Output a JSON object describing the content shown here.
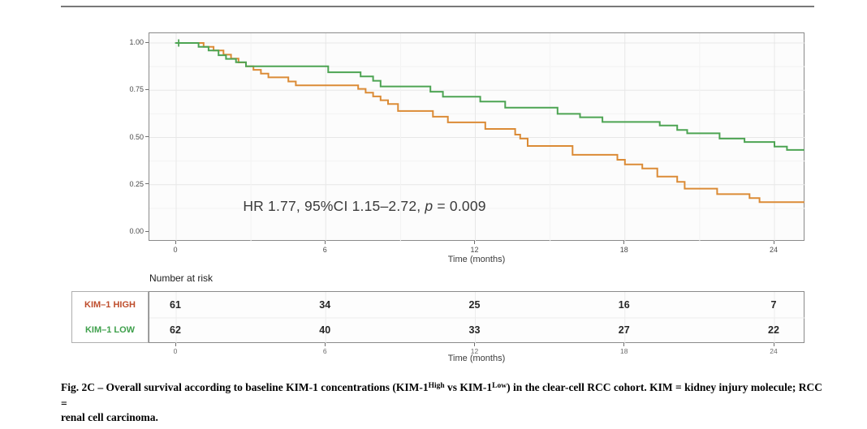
{
  "figure_label": "Fig. 2C",
  "annotation": {
    "prefix": "HR 1.77, 95%CI 1.15–2.72, ",
    "p_var": "p",
    "suffix": " = 0.009"
  },
  "risk_section": {
    "heading": "Number at risk",
    "x_title": "Time (months)"
  },
  "caption": {
    "line1_parts": [
      {
        "text": "Fig. 2C – Overall survival according to baseline KIM-1 concentrations (KIM-1",
        "sup": false
      },
      {
        "text": "High",
        "sup": true
      },
      {
        "text": " vs KIM-1",
        "sup": false
      },
      {
        "text": "Low",
        "sup": true
      },
      {
        "text": ") in the clear-cell RCC cohort. KIM = kidney injury molecule; RCC =",
        "sup": false
      }
    ],
    "line2": "renal cell carcinoma."
  },
  "chart_data": {
    "type": "line",
    "style": "kaplan-meier-step",
    "title": "",
    "xlabel": "Time (months)",
    "ylabel": "",
    "xlim": [
      -1.1,
      25.3
    ],
    "ylim": [
      0,
      1.0
    ],
    "x_ticks": [
      0,
      6,
      12,
      18,
      24
    ],
    "y_ticks": [
      {
        "label": "0.00",
        "value": 0
      },
      {
        "label": "0.25",
        "value": 0.25
      },
      {
        "label": "0.50",
        "value": 0.5
      },
      {
        "label": "0.75",
        "value": 0.75
      },
      {
        "label": "1.00",
        "value": 1.0
      }
    ],
    "grid": "major-and-minor",
    "legend_position": "none",
    "annotation_text": "HR 1.77, 95%CI 1.15–2.72, p = 0.009",
    "series": [
      {
        "name": "KIM-1 HIGH",
        "color": "#DB8B36",
        "censors": [],
        "steps": [
          [
            0,
            1.0
          ],
          [
            1.1,
            0.98
          ],
          [
            1.5,
            0.96
          ],
          [
            1.9,
            0.938
          ],
          [
            2.2,
            0.917
          ],
          [
            2.5,
            0.897
          ],
          [
            2.8,
            0.877
          ],
          [
            3.1,
            0.858
          ],
          [
            3.4,
            0.838
          ],
          [
            3.7,
            0.818
          ],
          [
            4.5,
            0.796
          ],
          [
            4.8,
            0.776
          ],
          [
            7.3,
            0.757
          ],
          [
            7.6,
            0.737
          ],
          [
            7.9,
            0.717
          ],
          [
            8.2,
            0.697
          ],
          [
            8.5,
            0.677
          ],
          [
            8.9,
            0.64
          ],
          [
            10.3,
            0.61
          ],
          [
            10.9,
            0.58
          ],
          [
            12.4,
            0.545
          ],
          [
            13.6,
            0.515
          ],
          [
            13.8,
            0.494
          ],
          [
            14.1,
            0.455
          ],
          [
            15.9,
            0.408
          ],
          [
            17.7,
            0.382
          ],
          [
            18.0,
            0.357
          ],
          [
            18.7,
            0.336
          ],
          [
            19.3,
            0.293
          ],
          [
            20.1,
            0.265
          ],
          [
            20.4,
            0.229
          ],
          [
            21.7,
            0.2
          ],
          [
            23.0,
            0.179
          ],
          [
            23.4,
            0.158
          ],
          [
            25.2,
            0.158
          ]
        ]
      },
      {
        "name": "KIM-1 LOW",
        "color": "#4DA453",
        "censors": [
          [
            0.1,
            1.0
          ]
        ],
        "steps": [
          [
            0,
            1.0
          ],
          [
            0.9,
            0.98
          ],
          [
            1.3,
            0.96
          ],
          [
            1.7,
            0.935
          ],
          [
            2.0,
            0.916
          ],
          [
            2.4,
            0.898
          ],
          [
            2.8,
            0.877
          ],
          [
            6.1,
            0.845
          ],
          [
            7.4,
            0.823
          ],
          [
            7.9,
            0.8
          ],
          [
            8.2,
            0.77
          ],
          [
            10.2,
            0.742
          ],
          [
            10.7,
            0.716
          ],
          [
            12.2,
            0.69
          ],
          [
            13.2,
            0.658
          ],
          [
            15.3,
            0.625
          ],
          [
            16.2,
            0.607
          ],
          [
            17.1,
            0.582
          ],
          [
            19.4,
            0.563
          ],
          [
            20.1,
            0.54
          ],
          [
            20.5,
            0.522
          ],
          [
            21.8,
            0.494
          ],
          [
            22.8,
            0.476
          ],
          [
            24.0,
            0.452
          ],
          [
            24.5,
            0.434
          ],
          [
            25.2,
            0.434
          ]
        ]
      }
    ],
    "number_at_risk": {
      "times": [
        0,
        6,
        12,
        18,
        24
      ],
      "rows": [
        {
          "label": "KIM–1 HIGH",
          "color": "#BE4D2C",
          "values": [
            61,
            34,
            25,
            16,
            7
          ]
        },
        {
          "label": "KIM–1 LOW",
          "color": "#3FA04C",
          "values": [
            62,
            40,
            33,
            27,
            22
          ]
        }
      ]
    }
  }
}
